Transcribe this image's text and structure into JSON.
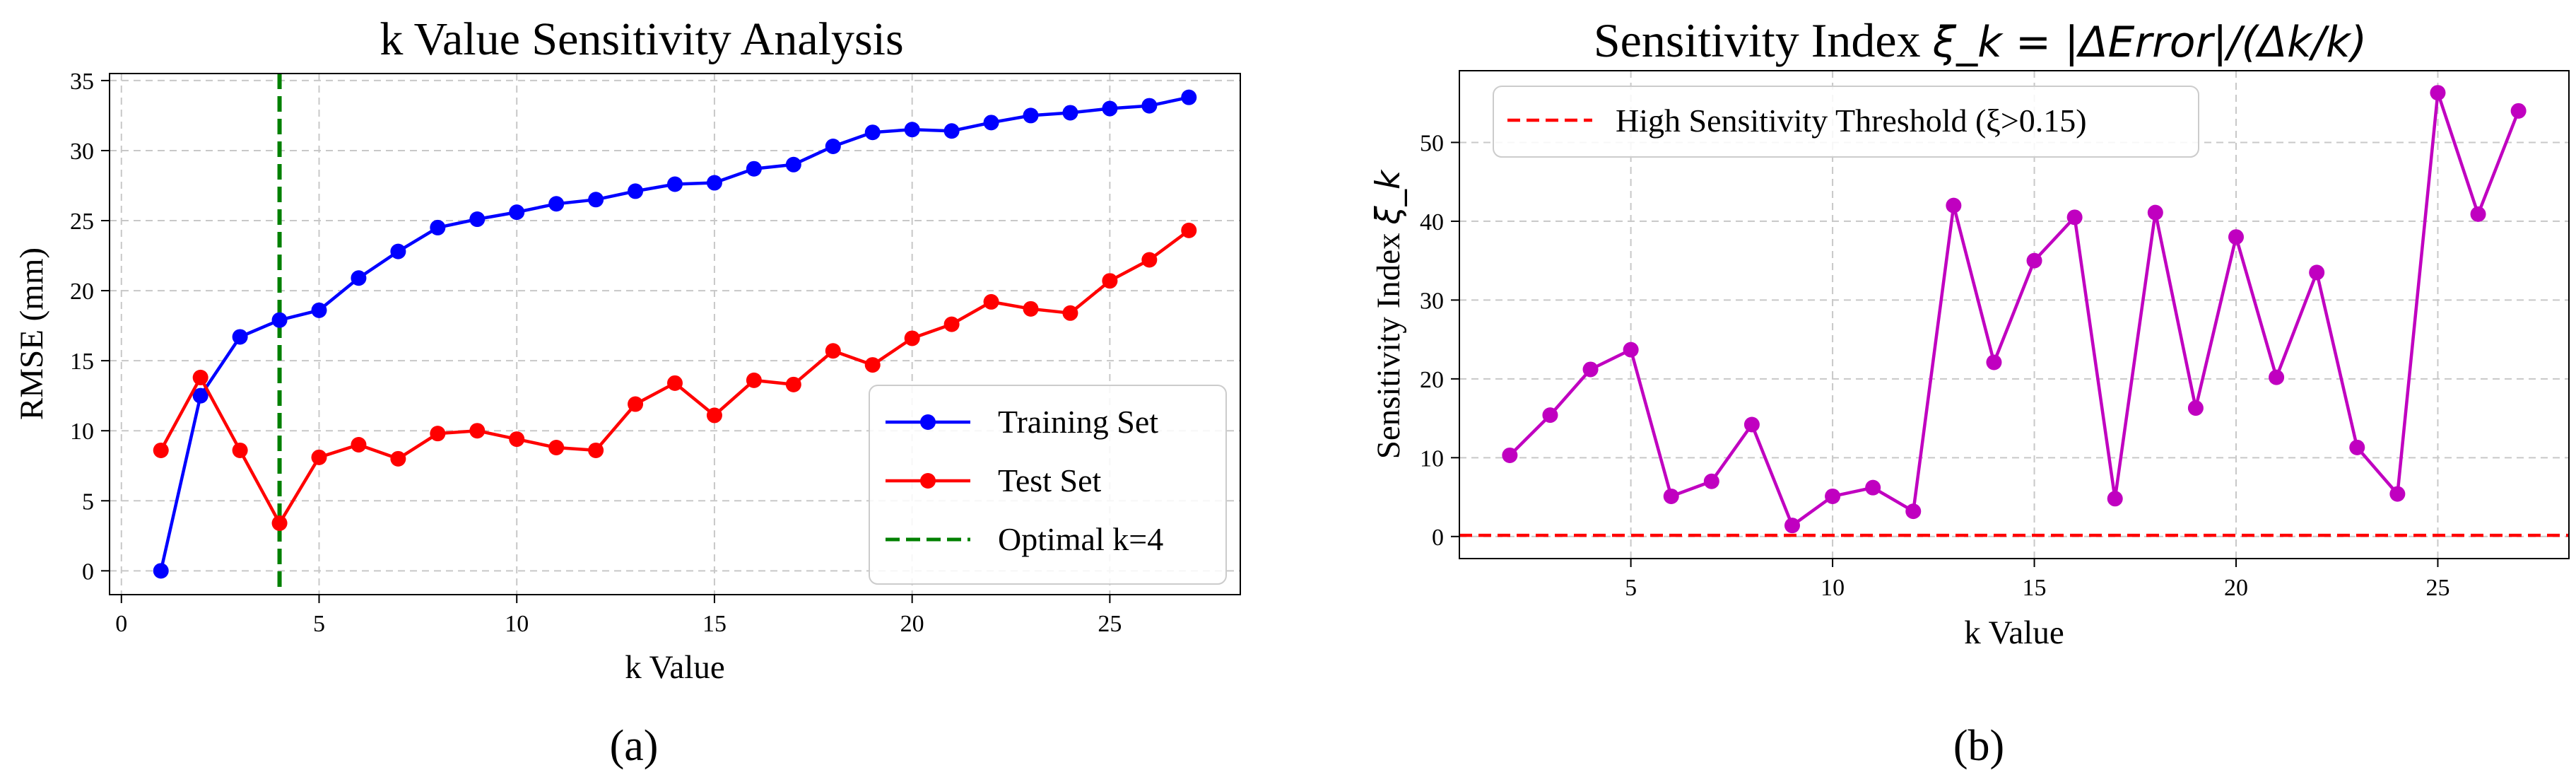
{
  "chart_data": [
    {
      "panel": "a",
      "type": "line",
      "title": "k Value Sensitivity Analysis",
      "xlabel": "k Value",
      "ylabel": "RMSE (mm)",
      "xlim": [
        -0.3,
        28.3
      ],
      "ylim": [
        -1.7,
        35.5
      ],
      "xticks": [
        0,
        5,
        10,
        15,
        20,
        25
      ],
      "yticks": [
        0,
        5,
        10,
        15,
        20,
        25,
        30,
        35
      ],
      "grid": true,
      "legend_position": "bottom-right",
      "caption": "(a)",
      "series": [
        {
          "name": "Training Set",
          "color": "#0000ff",
          "x": [
            1,
            2,
            3,
            4,
            5,
            6,
            7,
            8,
            9,
            10,
            11,
            12,
            13,
            14,
            15,
            16,
            17,
            18,
            19,
            20,
            21,
            22,
            23,
            24,
            25,
            26,
            27
          ],
          "values": [
            0,
            12.5,
            16.7,
            17.9,
            18.6,
            20.9,
            22.8,
            24.5,
            25.1,
            25.6,
            26.2,
            26.5,
            27.1,
            27.6,
            27.7,
            28.7,
            29.0,
            30.3,
            31.3,
            31.5,
            31.4,
            32.0,
            32.5,
            32.7,
            33.0,
            33.2,
            33.8
          ]
        },
        {
          "name": "Test Set",
          "color": "#ff0000",
          "x": [
            1,
            2,
            3,
            4,
            5,
            6,
            7,
            8,
            9,
            10,
            11,
            12,
            13,
            14,
            15,
            16,
            17,
            18,
            19,
            20,
            21,
            22,
            23,
            24,
            25,
            26,
            27
          ],
          "values": [
            8.6,
            13.8,
            8.6,
            3.4,
            8.1,
            9.0,
            8.0,
            9.8,
            10.0,
            9.4,
            8.8,
            8.6,
            11.9,
            13.4,
            11.1,
            13.6,
            13.3,
            15.7,
            14.7,
            16.6,
            17.6,
            19.2,
            18.7,
            18.4,
            20.7,
            22.2,
            24.3
          ]
        }
      ],
      "reference_lines": [
        {
          "name": "Optimal k=4",
          "orientation": "vertical",
          "x": 4,
          "color": "#008000",
          "style": "dashed"
        }
      ]
    },
    {
      "panel": "b",
      "type": "line",
      "title_prefix": "Sensitivity Index ",
      "title_math": "ξ_k = |ΔError|/(Δk/k)",
      "xlabel": "k Value",
      "ylabel_prefix": "Sensitivity Index ",
      "ylabel_symbol": "ξ_k",
      "xlim": [
        0.75,
        28.25
      ],
      "ylim": [
        -2.8,
        59.1
      ],
      "xticks": [
        5,
        10,
        15,
        20,
        25
      ],
      "yticks": [
        0,
        10,
        20,
        30,
        40,
        50
      ],
      "grid": true,
      "legend_position": "top-left",
      "caption": "(b)",
      "series": [
        {
          "name": "Sensitivity Index",
          "color": "#c000c0",
          "x": [
            2,
            3,
            4,
            5,
            6,
            7,
            8,
            9,
            10,
            11,
            12,
            13,
            14,
            15,
            16,
            17,
            18,
            19,
            20,
            21,
            22,
            23,
            24,
            25,
            26,
            27
          ],
          "values": [
            10.3,
            15.4,
            21.2,
            23.7,
            5.1,
            7.0,
            14.2,
            1.4,
            5.1,
            6.2,
            3.2,
            42.0,
            22.1,
            35.0,
            40.5,
            4.8,
            41.1,
            16.3,
            38.0,
            20.2,
            33.5,
            11.3,
            5.4,
            56.3,
            40.9,
            54.0
          ]
        }
      ],
      "reference_lines": [
        {
          "name": "High Sensitivity Threshold (ξ>0.15)",
          "orientation": "horizontal",
          "y": 0.15,
          "color": "#ff0000",
          "style": "dashed"
        }
      ]
    }
  ]
}
